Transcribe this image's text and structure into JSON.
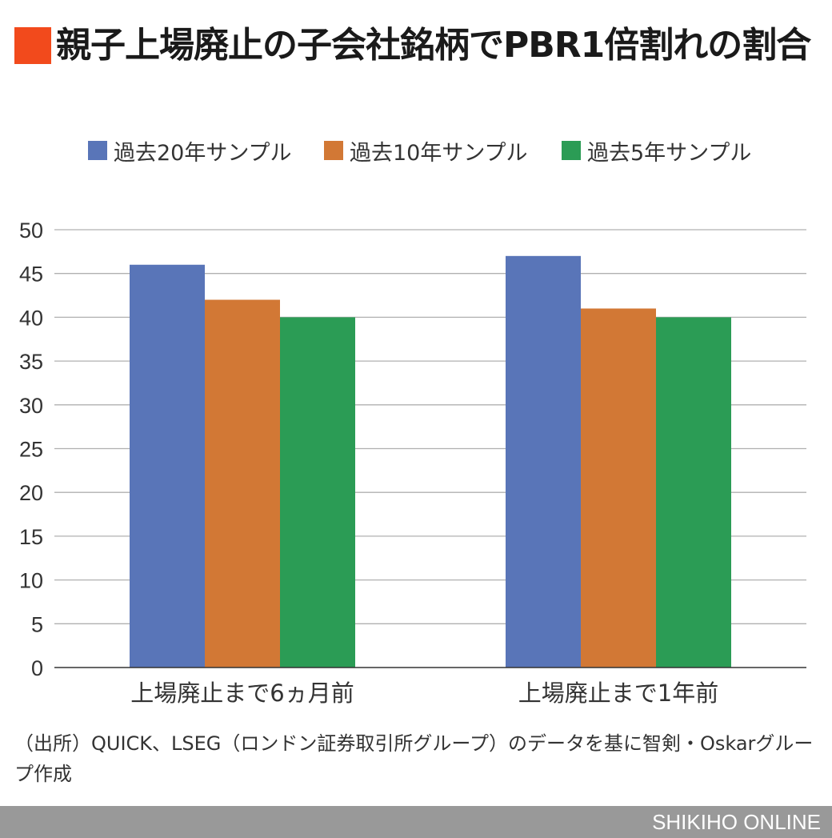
{
  "title": "親子上場廃止の子会社銘柄でPBR1倍割れの割合",
  "source_note": "（出所）QUICK、LSEG（ロンドン証券取引所グループ）のデータを基に智剣・Oskarグループ作成",
  "footer_brand": "SHIKIHO ONLINE",
  "colors": {
    "title_mark": "#f24a1c",
    "series": [
      "#5975b8",
      "#d27835",
      "#2b9c55"
    ],
    "grid": "#b0b0b0",
    "footer": "#999999"
  },
  "chart_data": {
    "type": "bar",
    "title": "親子上場廃止の子会社銘柄でPBR1倍割れの割合",
    "categories": [
      "上場廃止まで6ヵ月前",
      "上場廃止まで1年前"
    ],
    "series": [
      {
        "name": "過去20年サンプル",
        "values": [
          46,
          47
        ]
      },
      {
        "name": "過去10年サンプル",
        "values": [
          42,
          41
        ]
      },
      {
        "name": "過去5年サンプル",
        "values": [
          40,
          40
        ]
      }
    ],
    "xlabel": "",
    "ylabel": "",
    "ylim": [
      0,
      50
    ],
    "yticks": [
      0,
      5,
      10,
      15,
      20,
      25,
      30,
      35,
      40,
      45,
      50
    ],
    "grid": true,
    "legend_position": "top"
  }
}
